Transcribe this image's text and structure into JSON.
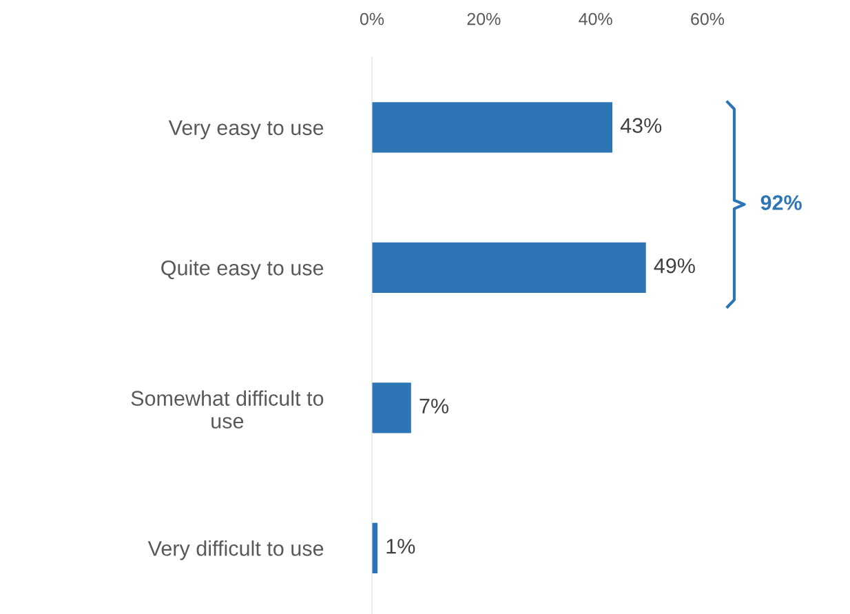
{
  "chart_data": {
    "type": "bar",
    "orientation": "horizontal",
    "categories": [
      "Very easy to use",
      "Quite easy to use",
      "Somewhat difficult to\nuse",
      "Very difficult to use"
    ],
    "values": [
      43,
      49,
      7,
      1
    ],
    "value_labels": [
      "43%",
      "49%",
      "7%",
      "1%"
    ],
    "color": "#2e75b6",
    "xlim": [
      0,
      60
    ],
    "xticks": [
      {
        "value": 0,
        "label": "0%"
      },
      {
        "value": 20,
        "label": "20%"
      },
      {
        "value": 40,
        "label": "40%"
      },
      {
        "value": 60,
        "label": "60%"
      }
    ],
    "grid": false,
    "annotations": [
      "92%"
    ]
  }
}
